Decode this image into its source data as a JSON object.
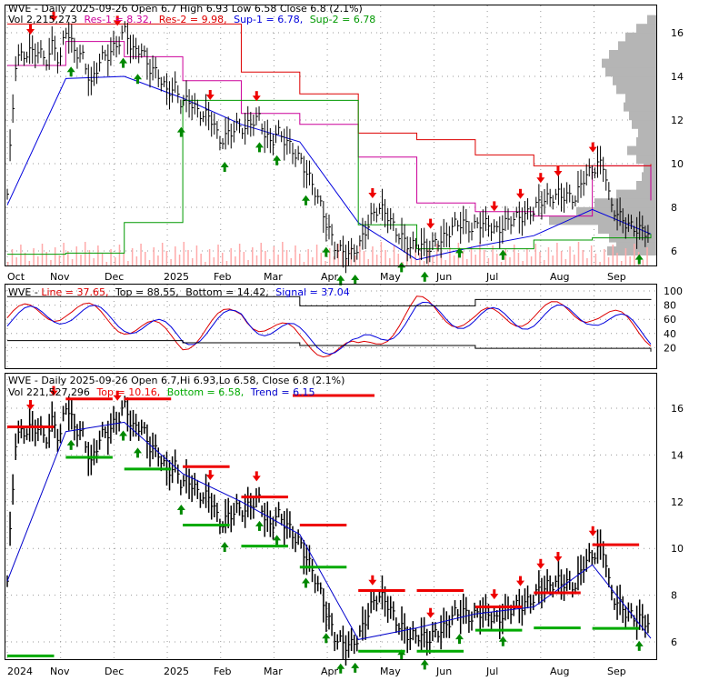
{
  "colors": {
    "price": "#000000",
    "res1": "#cc0099",
    "res2": "#dd0000",
    "sup1": "#0000dd",
    "sup2": "#009900",
    "line": "#dd0000",
    "signal": "#0000dd",
    "bound": "#000000",
    "top": "#ee0000",
    "bottom": "#00aa00",
    "trend": "#0000cc",
    "volume": "#ffaaaa",
    "profile": "#b5b5b5",
    "arrow_up": "#008800",
    "arrow_down": "#ee0000",
    "grid": "#999999"
  },
  "panel1": {
    "header_left": "WVE - Daily 2025-09-26 Open 6.7   High 6.93  Low 6.58  Close 6.8 (2.1%)",
    "vol_text": "Vol 2,215,273",
    "res1_text": "Res-1 = 8.32,",
    "res2_text": "Res-2 = 9.98,",
    "sup1_text": "Sup-1 = 6.78,",
    "sup2_text": "Sup-2 = 6.78",
    "y_ticks": [
      "16",
      "14",
      "12",
      "10",
      "8",
      "6"
    ],
    "x_labels": [
      "Oct",
      "Nov",
      "Dec",
      "2025",
      "Feb",
      "Mar",
      "Apr",
      "May",
      "Jun",
      "Jul",
      "Aug",
      "Sep"
    ]
  },
  "panel2": {
    "label_name": "WVE - ",
    "line_text": "Line = 37.65,",
    "top_text": "Top = 88.55,",
    "bottom_text": "Bottom = 14.42,",
    "signal_text": "Signal = 37.04",
    "y_ticks": [
      "100",
      "80",
      "60",
      "40",
      "20"
    ]
  },
  "panel3": {
    "header_left": "WVE - Daily 2025-09-26 Open 6.7,Hi 6.93,Lo 6.58, Close 6.8 (2.1%)",
    "vol_text": "Vol 221,527,296",
    "top_text": "Top = 10.16,",
    "bottom_text": "Bottom = 6.58,",
    "trend_text": "Trend = 6.15",
    "y_ticks": [
      "16",
      "14",
      "12",
      "10",
      "8",
      "6"
    ],
    "x_labels": [
      "2024",
      "Nov",
      "Dec",
      "2025",
      "Feb",
      "Mar",
      "Apr",
      "May",
      "Jun",
      "Jul",
      "Aug",
      "Sep"
    ]
  },
  "chart_data": [
    {
      "type": "line",
      "title": "WVE - Daily 2025-09-26 Open 6.7 High 6.93 Low 6.58 Close 6.8 (2.1%)",
      "x": [
        "2024-10",
        "2024-11",
        "2024-12",
        "2025-01",
        "2025-02",
        "2025-03",
        "2025-04",
        "2025-05",
        "2025-06",
        "2025-07",
        "2025-08",
        "2025-09"
      ],
      "series": [
        {
          "name": "Close",
          "values": [
            15.3,
            15.0,
            14.6,
            12.8,
            11.9,
            10.4,
            5.9,
            6.6,
            7.4,
            7.6,
            9.2,
            6.8
          ]
        },
        {
          "name": "Res-1",
          "values": [
            14.5,
            15.6,
            14.9,
            13.8,
            12.3,
            11.8,
            10.3,
            8.2,
            7.8,
            7.6,
            9.9,
            8.32
          ]
        },
        {
          "name": "Res-2",
          "values": [
            16.4,
            16.4,
            16.4,
            16.4,
            14.2,
            13.2,
            11.4,
            11.1,
            10.4,
            9.9,
            9.9,
            9.98
          ]
        },
        {
          "name": "Sup-1",
          "values": [
            8.1,
            13.9,
            14.0,
            13.0,
            11.8,
            11.0,
            7.3,
            5.6,
            6.2,
            6.7,
            7.9,
            6.78
          ]
        },
        {
          "name": "Sup-2",
          "values": [
            5.85,
            5.9,
            7.3,
            12.9,
            12.9,
            12.9,
            7.2,
            6.1,
            6.1,
            6.5,
            6.6,
            6.78
          ]
        }
      ],
      "ylim": [
        5.5,
        17
      ],
      "price_points": [
        [
          0.0,
          8.6
        ],
        [
          1.5,
          14.8
        ],
        [
          3,
          15.0
        ],
        [
          5,
          15.2
        ],
        [
          7,
          14.7
        ],
        [
          8,
          15.7
        ],
        [
          9,
          14.4
        ],
        [
          10,
          16.3
        ],
        [
          11.5,
          15.2
        ],
        [
          13,
          14.9
        ],
        [
          14.5,
          13.6
        ],
        [
          16,
          14.8
        ],
        [
          17.5,
          15.0
        ],
        [
          19,
          15.5
        ],
        [
          20.5,
          16.2
        ],
        [
          21.5,
          15.1
        ],
        [
          23,
          15.3
        ],
        [
          24.5,
          14.4
        ],
        [
          26,
          14.1
        ],
        [
          27.5,
          13.3
        ],
        [
          29,
          13.5
        ],
        [
          30,
          12.8
        ],
        [
          31.5,
          12.9
        ],
        [
          33,
          12.3
        ],
        [
          34.5,
          12.2
        ],
        [
          35.5,
          12.0
        ],
        [
          36.5,
          11.0
        ],
        [
          38,
          11.3
        ],
        [
          39.5,
          11.7
        ],
        [
          41,
          11.6
        ],
        [
          42.5,
          12.0
        ],
        [
          43.5,
          12.1
        ],
        [
          44.5,
          11.3
        ],
        [
          45.5,
          10.9
        ],
        [
          46.5,
          11.5
        ],
        [
          47.5,
          11.2
        ],
        [
          48.5,
          10.9
        ],
        [
          49.5,
          10.5
        ],
        [
          50.5,
          10.2
        ],
        [
          52,
          9.4
        ],
        [
          53.5,
          8.5
        ],
        [
          55,
          7.3
        ],
        [
          56.5,
          6.2
        ],
        [
          58,
          5.9
        ],
        [
          59.5,
          5.85
        ],
        [
          61,
          6.4
        ],
        [
          62.5,
          7.4
        ],
        [
          64,
          8.0
        ],
        [
          65.5,
          7.7
        ],
        [
          67,
          6.9
        ],
        [
          68,
          6.6
        ],
        [
          69.5,
          6.2
        ],
        [
          71,
          6.3
        ],
        [
          72.5,
          6.1
        ],
        [
          74,
          6.4
        ],
        [
          75.5,
          6.6
        ],
        [
          77,
          7.2
        ],
        [
          78.5,
          7.3
        ],
        [
          80,
          7.0
        ],
        [
          81.5,
          7.3
        ],
        [
          83,
          7.2
        ],
        [
          84.5,
          6.9
        ],
        [
          86,
          7.3
        ],
        [
          87.5,
          7.5
        ],
        [
          89,
          7.6
        ],
        [
          90.5,
          7.8
        ],
        [
          92,
          8.3
        ],
        [
          93.5,
          8.4
        ],
        [
          95,
          8.6
        ],
        [
          96.5,
          8.5
        ],
        [
          98,
          8.4
        ],
        [
          99.5,
          9.4
        ],
        [
          101,
          9.7
        ],
        [
          102,
          10.0
        ],
        [
          103,
          9.9
        ],
        [
          104,
          8.1
        ],
        [
          105.5,
          7.6
        ],
        [
          107,
          7.2
        ],
        [
          108.5,
          7.0
        ],
        [
          110,
          6.9
        ],
        [
          111,
          6.8
        ]
      ],
      "down_arrow_dates": [
        4,
        8,
        19,
        35,
        43,
        63,
        73,
        84,
        88.5,
        92,
        95,
        101
      ],
      "up_arrow_dates": [
        11,
        20,
        22.5,
        30,
        37.5,
        43.5,
        46.5,
        51.5,
        55,
        57.5,
        60,
        68,
        72,
        78,
        85.5,
        109
      ],
      "profile_levels": [
        [
          6.0,
          54
        ],
        [
          6.3,
          44
        ],
        [
          6.6,
          52
        ],
        [
          7.0,
          64
        ],
        [
          7.4,
          118
        ],
        [
          7.8,
          88
        ],
        [
          8.2,
          68
        ],
        [
          8.6,
          44
        ],
        [
          9.0,
          22
        ],
        [
          9.4,
          16
        ],
        [
          9.8,
          14
        ],
        [
          10.2,
          22
        ],
        [
          10.6,
          32
        ],
        [
          11.0,
          22
        ],
        [
          11.4,
          20
        ],
        [
          11.8,
          27
        ],
        [
          12.2,
          30
        ],
        [
          12.6,
          36
        ],
        [
          13.0,
          34
        ],
        [
          13.4,
          44
        ],
        [
          13.8,
          48
        ],
        [
          14.2,
          56
        ],
        [
          14.6,
          60
        ],
        [
          15.0,
          52
        ],
        [
          15.4,
          42
        ],
        [
          15.8,
          34
        ],
        [
          16.2,
          22
        ],
        [
          16.6,
          10
        ]
      ]
    },
    {
      "type": "line",
      "title": "WVE - Line = 37.65, Top = 88.55, Bottom = 14.42, Signal = 37.04",
      "x": [
        "2024-10",
        "2024-11",
        "2024-12",
        "2025-01",
        "2025-02",
        "2025-03",
        "2025-04",
        "2025-05",
        "2025-06",
        "2025-07",
        "2025-08",
        "2025-09"
      ],
      "series": [
        {
          "name": "Line",
          "values": [
            62,
            75,
            55,
            30,
            70,
            30,
            12,
            78,
            58,
            68,
            72,
            37.65
          ]
        },
        {
          "name": "Signal",
          "values": [
            58,
            70,
            58,
            35,
            63,
            35,
            18,
            70,
            60,
            62,
            68,
            37.04
          ]
        },
        {
          "name": "Top",
          "values": [
            92,
            92,
            92,
            92,
            92,
            79,
            79,
            79,
            88,
            88,
            88,
            88.55
          ]
        },
        {
          "name": "Bottom",
          "values": [
            30,
            30,
            30,
            27,
            27,
            23,
            23,
            23,
            19,
            19,
            19,
            14.42
          ]
        }
      ],
      "ylim": [
        0,
        100
      ]
    },
    {
      "type": "line",
      "title": "WVE - Daily 2025-09-26 Open 6.7,Hi 6.93,Lo 6.58, Close 6.8 (2.1%)",
      "x": [
        "2024-10",
        "2024-11",
        "2024-12",
        "2025-01",
        "2025-02",
        "2025-03",
        "2025-04",
        "2025-05",
        "2025-06",
        "2025-07",
        "2025-08",
        "2025-09"
      ],
      "series": [
        {
          "name": "Trend",
          "values": [
            8.6,
            15.0,
            15.4,
            13.2,
            12.0,
            10.6,
            6.1,
            6.6,
            7.2,
            7.5,
            9.3,
            6.15
          ]
        },
        {
          "name": "Top",
          "values": [
            15.2,
            16.4,
            16.4,
            13.5,
            12.2,
            11.0,
            8.2,
            8.2,
            7.5,
            8.1,
            10.16,
            10.16
          ]
        },
        {
          "name": "Bottom",
          "values": [
            5.4,
            13.9,
            13.4,
            11.0,
            10.1,
            9.2,
            5.6,
            5.6,
            6.5,
            6.6,
            6.58,
            6.58
          ]
        }
      ],
      "ylim": [
        5.5,
        17
      ]
    }
  ]
}
